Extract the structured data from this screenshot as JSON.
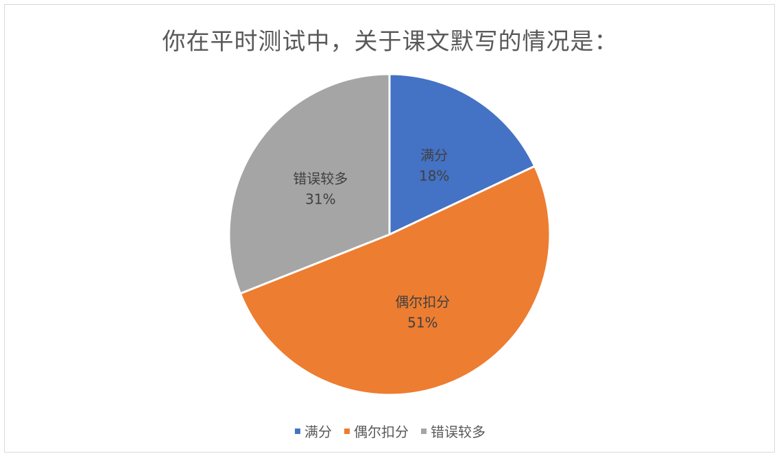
{
  "chart_data": {
    "type": "pie",
    "title": "你在平时测试中，关于课文默写的情况是：",
    "categories": [
      "满分",
      "偶尔扣分",
      "错误较多"
    ],
    "values": [
      18,
      51,
      31
    ],
    "value_labels": [
      "18%",
      "51%",
      "31%"
    ],
    "colors": [
      "#4472c4",
      "#ed7d31",
      "#a5a5a5"
    ],
    "legend_position": "bottom"
  }
}
